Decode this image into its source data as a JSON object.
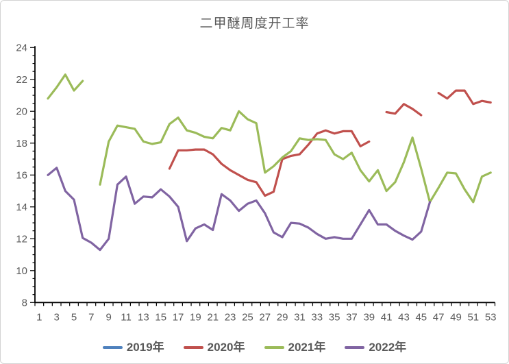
{
  "chart_data": {
    "type": "line",
    "title": "二甲醚周度开工率",
    "xlabel": "",
    "ylabel": "",
    "ylim": [
      8,
      24
    ],
    "y_tick_step": 2,
    "y_minor_step": 0.5,
    "x_label_interval": 2,
    "grid": false,
    "legend_position": "bottom",
    "axis_color": "#000000",
    "label_color": "#595959",
    "categories": [
      1,
      2,
      3,
      4,
      5,
      6,
      7,
      8,
      9,
      10,
      11,
      12,
      13,
      14,
      15,
      16,
      17,
      18,
      19,
      20,
      21,
      22,
      23,
      24,
      25,
      26,
      27,
      28,
      29,
      30,
      31,
      32,
      33,
      34,
      35,
      36,
      37,
      38,
      39,
      40,
      41,
      42,
      43,
      44,
      45,
      46,
      47,
      48,
      49,
      50,
      51,
      52,
      53
    ],
    "series": [
      {
        "name": "2019年",
        "color": "#4F81BD",
        "values": [
          null,
          null,
          null,
          null,
          null,
          null,
          null,
          null,
          null,
          null,
          null,
          null,
          null,
          null,
          null,
          null,
          null,
          null,
          null,
          null,
          null,
          null,
          null,
          null,
          null,
          null,
          null,
          null,
          null,
          null,
          null,
          null,
          null,
          null,
          null,
          null,
          null,
          null,
          null,
          null,
          null,
          null,
          null,
          null,
          null,
          null,
          null,
          null,
          null,
          null,
          null,
          null,
          null
        ]
      },
      {
        "name": "2020年",
        "color": "#C0504D",
        "values": [
          null,
          null,
          null,
          null,
          null,
          null,
          null,
          null,
          null,
          null,
          null,
          null,
          null,
          null,
          null,
          16.4,
          17.55,
          17.55,
          17.6,
          17.6,
          17.3,
          16.7,
          16.3,
          16.0,
          15.7,
          15.55,
          14.7,
          14.95,
          17.0,
          17.2,
          17.3,
          17.9,
          18.6,
          18.8,
          18.6,
          18.75,
          18.75,
          17.8,
          18.1,
          null,
          19.95,
          19.85,
          20.45,
          20.15,
          19.75,
          null,
          21.15,
          20.8,
          21.3,
          21.3,
          20.45,
          20.65,
          20.55
        ]
      },
      {
        "name": "2021年",
        "color": "#9BBB59",
        "values": [
          null,
          20.8,
          21.5,
          22.3,
          21.3,
          21.9,
          null,
          15.4,
          18.1,
          19.1,
          19.0,
          18.9,
          18.1,
          17.95,
          18.05,
          19.2,
          19.6,
          18.8,
          18.65,
          18.4,
          18.3,
          18.95,
          18.8,
          20.0,
          19.5,
          19.25,
          16.15,
          16.55,
          17.1,
          17.5,
          18.3,
          18.2,
          18.25,
          18.2,
          17.3,
          17.0,
          17.4,
          16.3,
          15.6,
          16.3,
          15.0,
          15.55,
          16.8,
          18.35,
          16.4,
          14.3,
          15.2,
          16.15,
          16.1,
          15.1,
          14.3,
          15.9,
          16.15
        ]
      },
      {
        "name": "2022年",
        "color": "#8064A2",
        "values": [
          null,
          16.0,
          16.45,
          15.0,
          14.45,
          12.05,
          11.75,
          11.3,
          12.0,
          15.4,
          15.9,
          14.2,
          14.65,
          14.6,
          15.1,
          14.65,
          14.0,
          11.85,
          12.65,
          12.9,
          12.55,
          14.8,
          14.4,
          13.75,
          14.2,
          14.4,
          13.6,
          12.4,
          12.1,
          13.0,
          12.95,
          12.7,
          12.3,
          12.0,
          12.1,
          12.0,
          12.0,
          12.9,
          13.8,
          12.9,
          12.9,
          12.5,
          12.2,
          11.95,
          12.45,
          14.3,
          null,
          null,
          null,
          null,
          null,
          null,
          null
        ]
      }
    ]
  }
}
